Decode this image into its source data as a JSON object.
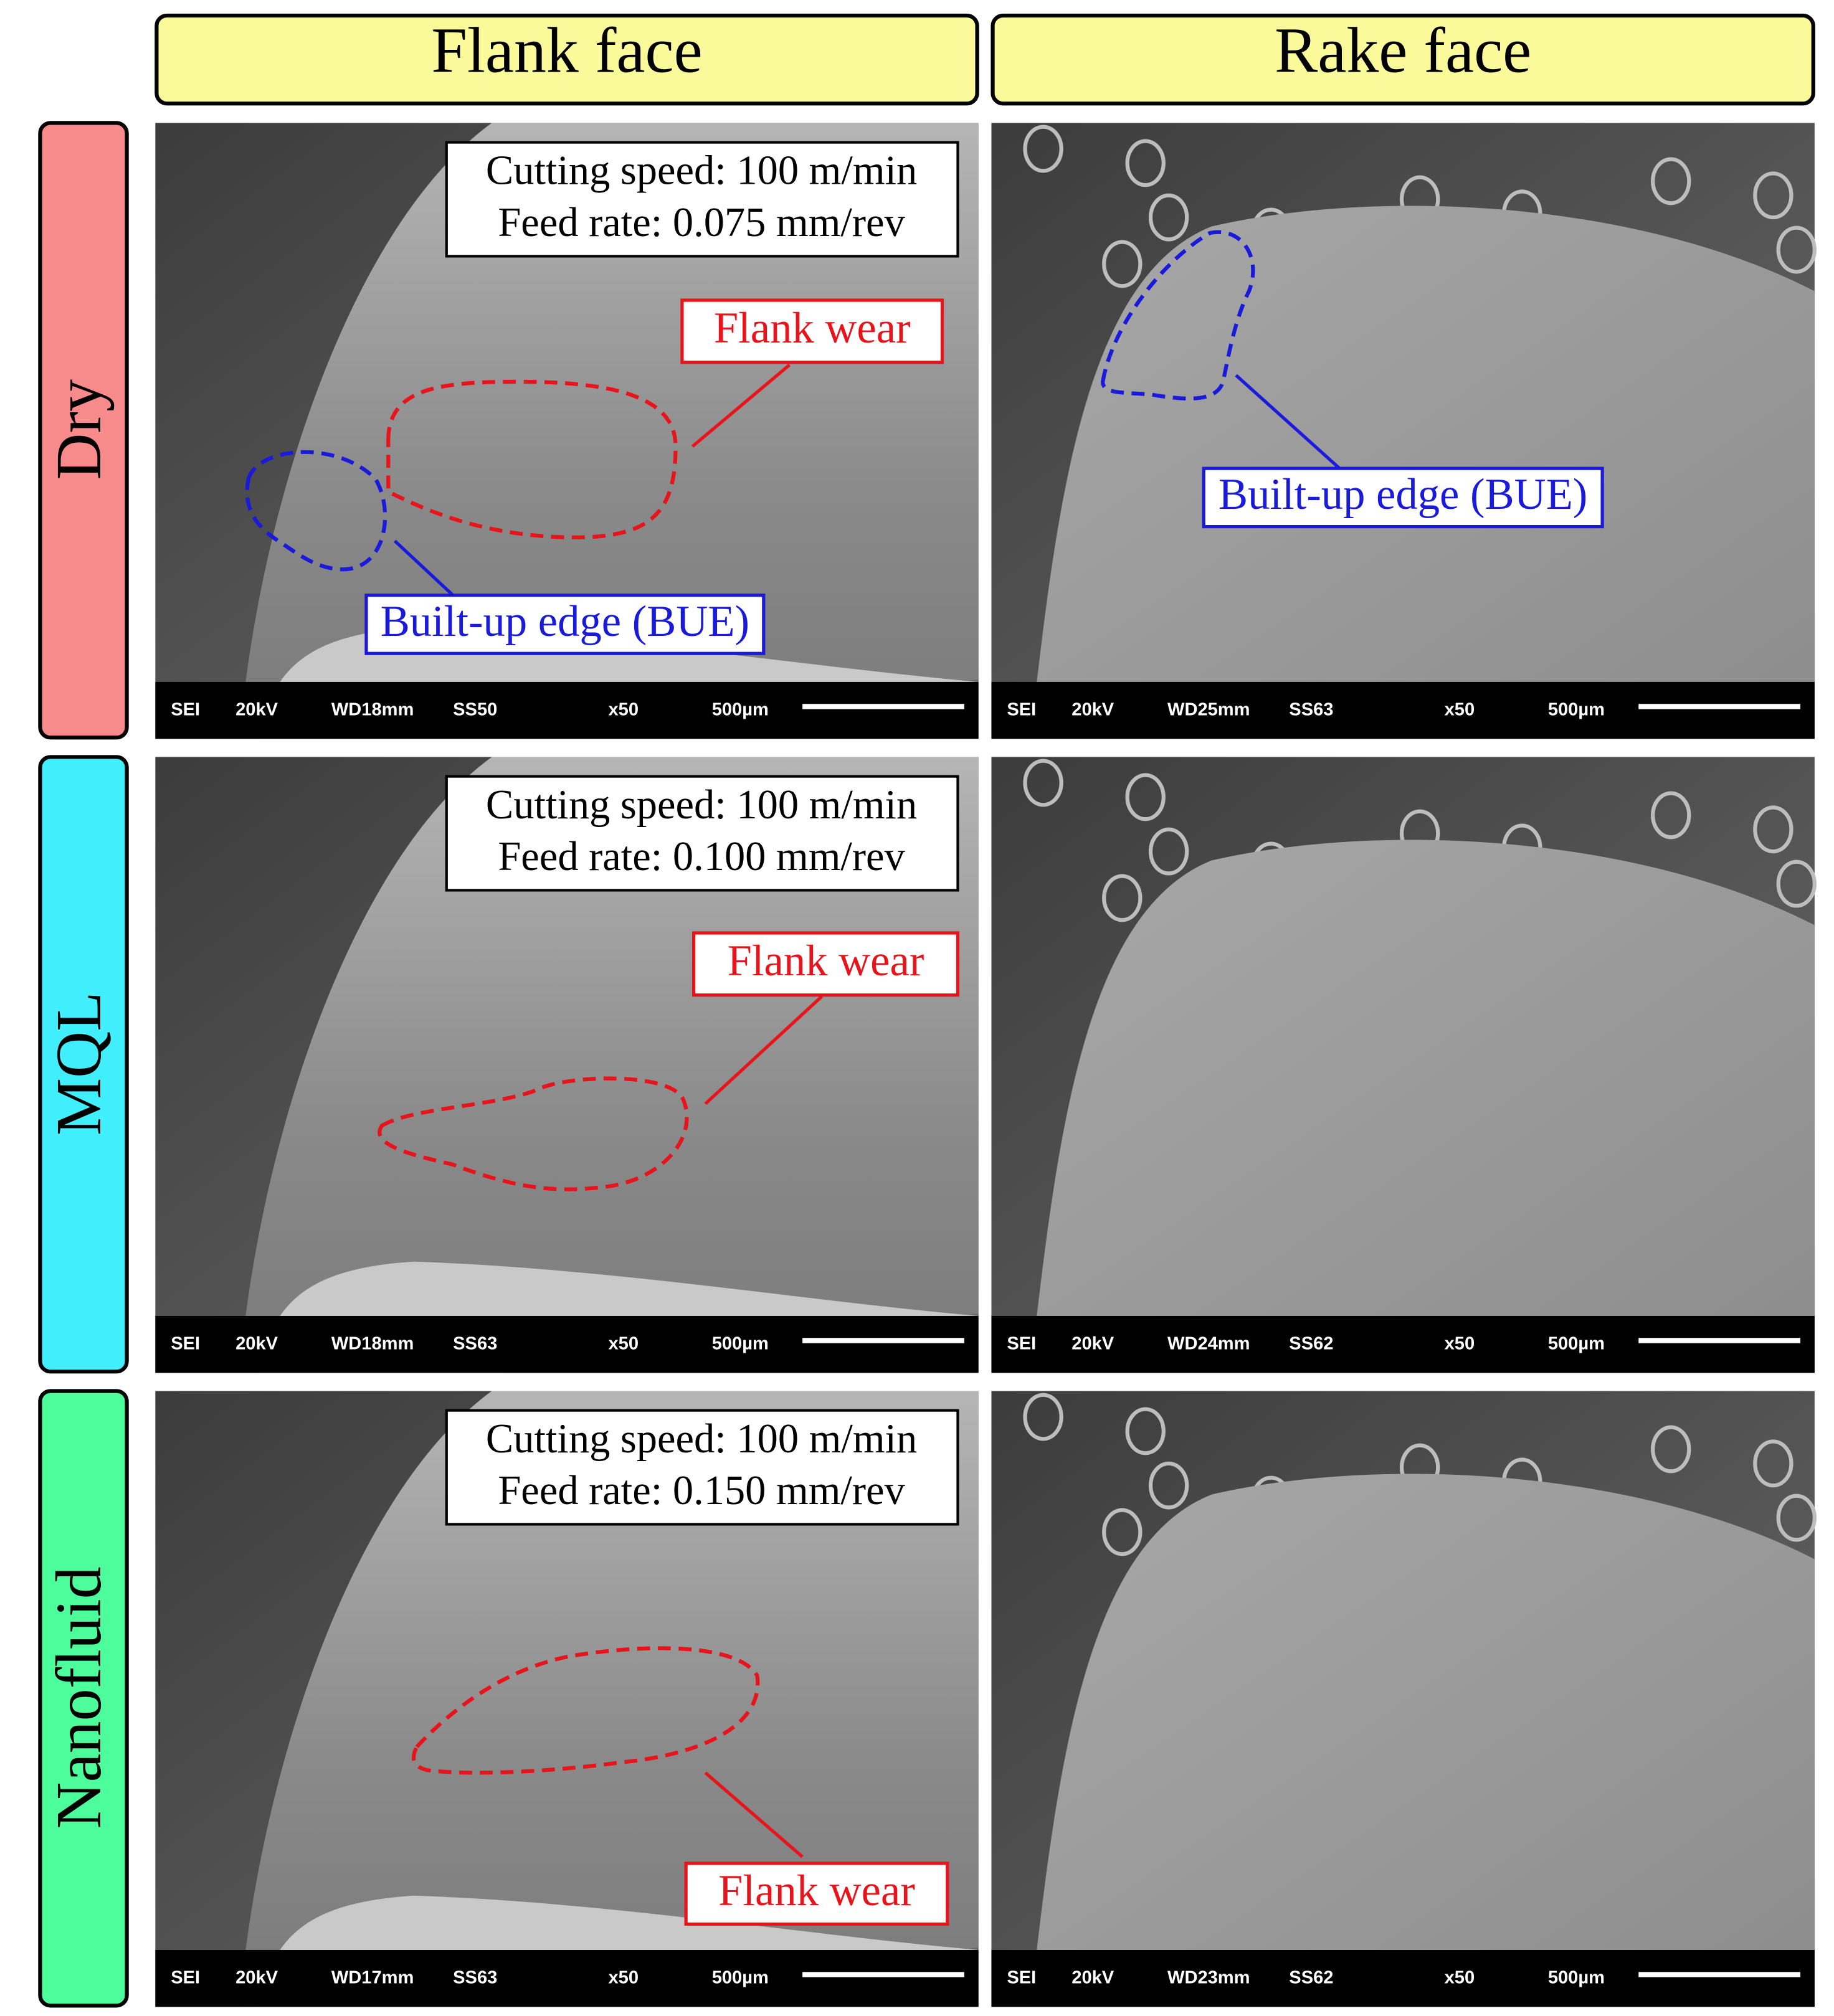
{
  "columns": [
    "Flank face",
    "Rake face"
  ],
  "rows": [
    {
      "label": "Dry",
      "color": "#f78a8a",
      "panels": [
        {
          "info": [
            "Cutting speed: 100 m/min",
            "Feed rate: 0.075 mm/rev"
          ],
          "annotations": [
            {
              "text": "Flank wear",
              "color": "#e8141b"
            },
            {
              "text": "Built-up edge (BUE)",
              "color": "#1a1adb"
            }
          ],
          "scalebar": [
            "SEI",
            "20kV",
            "WD18mm",
            "SS50",
            "x50",
            "500µm"
          ]
        },
        {
          "annotations": [
            {
              "text": "Built-up edge (BUE)",
              "color": "#1a1adb"
            }
          ],
          "scalebar": [
            "SEI",
            "20kV",
            "WD25mm",
            "SS63",
            "x50",
            "500µm"
          ]
        }
      ]
    },
    {
      "label": "MQL",
      "color": "#41eefc",
      "panels": [
        {
          "info": [
            "Cutting speed: 100 m/min",
            "Feed rate: 0.100 mm/rev"
          ],
          "annotations": [
            {
              "text": "Flank wear",
              "color": "#e8141b"
            }
          ],
          "scalebar": [
            "SEI",
            "20kV",
            "WD18mm",
            "SS63",
            "x50",
            "500µm"
          ]
        },
        {
          "scalebar": [
            "SEI",
            "20kV",
            "WD24mm",
            "SS62",
            "x50",
            "500µm"
          ]
        }
      ]
    },
    {
      "label": "Nanofluid",
      "color": "#4dfc9a",
      "panels": [
        {
          "info": [
            "Cutting speed: 100 m/min",
            "Feed rate: 0.150 mm/rev"
          ],
          "annotations": [
            {
              "text": "Flank wear",
              "color": "#e8141b"
            }
          ],
          "scalebar": [
            "SEI",
            "20kV",
            "WD17mm",
            "SS63",
            "x50",
            "500µm"
          ]
        },
        {
          "scalebar": [
            "SEI",
            "20kV",
            "WD23mm",
            "SS62",
            "x50",
            "500µm"
          ]
        }
      ]
    }
  ]
}
